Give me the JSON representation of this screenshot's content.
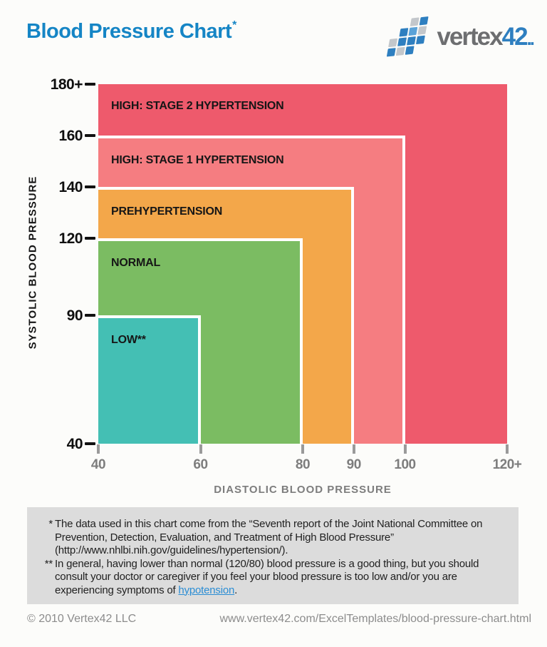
{
  "header": {
    "title": "Blood Pressure Chart",
    "title_asterisk": "*",
    "logo": {
      "word_gray": "vertex",
      "word_blue": "42",
      "dots": "..",
      "icon_pattern": [
        [
          "",
          "",
          "g",
          "b"
        ],
        [
          "",
          "b",
          "lb",
          "g"
        ],
        [
          "g",
          "b",
          "b",
          "b"
        ],
        [
          "b",
          "g",
          "b",
          ""
        ]
      ],
      "icon_colors": {
        "b": "#2e7fc0",
        "lb": "#5aa2d8",
        "g": "#c3c7cb"
      }
    }
  },
  "colors": {
    "title_blue": "#1585c5",
    "link_blue": "#2a8dd4",
    "axis_text_gray": "#7d7d7d",
    "tick_gray": "#9a9a9a",
    "note_bg": "#dcdcdc"
  },
  "chart_data": {
    "type": "area",
    "subtype": "nested-range-rectangles",
    "title": "Blood Pressure Chart",
    "xlabel": "DIASTOLIC BLOOD PRESSURE",
    "ylabel": "SYSTOLIC BLOOD PRESSURE",
    "xlim": [
      40,
      120
    ],
    "ylim": [
      40,
      180
    ],
    "grid": false,
    "legend": false,
    "x_ticks": [
      {
        "value": 40,
        "label": "40"
      },
      {
        "value": 60,
        "label": "60"
      },
      {
        "value": 80,
        "label": "80"
      },
      {
        "value": 90,
        "label": "90"
      },
      {
        "value": 100,
        "label": "100"
      },
      {
        "value": 120,
        "label": "120+"
      }
    ],
    "y_ticks": [
      {
        "value": 40,
        "label": "40"
      },
      {
        "value": 90,
        "label": "90"
      },
      {
        "value": 120,
        "label": "120"
      },
      {
        "value": 140,
        "label": "140"
      },
      {
        "value": 160,
        "label": "160"
      },
      {
        "value": 180,
        "label": "180+"
      }
    ],
    "regions": [
      {
        "label": "LOW**",
        "diastolic_range": [
          40,
          60
        ],
        "systolic_range": [
          40,
          90
        ],
        "color": "#44bfb4"
      },
      {
        "label": "NORMAL",
        "diastolic_range": [
          40,
          80
        ],
        "systolic_range": [
          40,
          120
        ],
        "color": "#7bbc62"
      },
      {
        "label": "PREHYPERTENSION",
        "diastolic_range": [
          40,
          90
        ],
        "systolic_range": [
          40,
          140
        ],
        "color": "#f3a74a"
      },
      {
        "label": "HIGH: STAGE 1 HYPERTENSION",
        "diastolic_range": [
          40,
          100
        ],
        "systolic_range": [
          40,
          160
        ],
        "color": "#f57d81"
      },
      {
        "label": "HIGH: STAGE 2 HYPERTENSION",
        "diastolic_range": [
          40,
          120
        ],
        "systolic_range": [
          40,
          180
        ],
        "color": "#ee5a6c"
      }
    ]
  },
  "notes": {
    "items": [
      {
        "marker": "*",
        "text": "The data used in this chart come from the “Seventh report of the Joint National Committee on Prevention, Detection, Evaluation, and Treatment of High Blood Pressure” (http://www.nhlbi.nih.gov/guidelines/hypertension/)."
      },
      {
        "marker": "**",
        "text_before": "In general, having lower than normal (120/80) blood pressure is a good thing, but you should consult your doctor or caregiver if you feel your blood pressure is too low and/or you are experiencing symptoms of ",
        "link": "hypotension",
        "text_after": "."
      }
    ]
  },
  "footer": {
    "copyright": "© 2010 Vertex42 LLC",
    "url": "www.vertex42.com/ExcelTemplates/blood-pressure-chart.html"
  }
}
